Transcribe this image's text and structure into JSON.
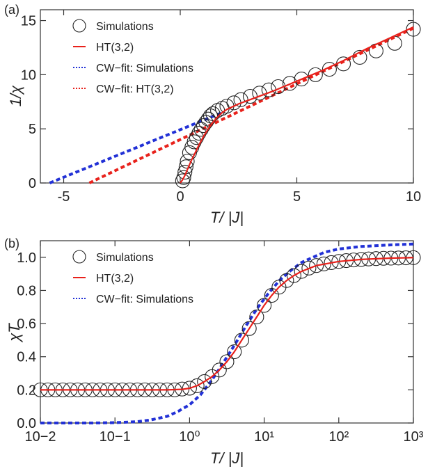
{
  "chart_data": [
    {
      "panel_label": "(a)",
      "type": "line",
      "xlabel": "T/ |J|",
      "ylabel": "1/χ",
      "xlim": [
        -6,
        10
      ],
      "ylim": [
        0,
        16
      ],
      "xticks": [
        -5,
        0,
        5,
        10
      ],
      "yticks": [
        0,
        5,
        10,
        15
      ],
      "xscale": "linear",
      "grid": false,
      "legend_position": "top-left",
      "colors": {
        "simulations": "#222222",
        "ht": "#e8211b",
        "cw_sim": "#2231d6",
        "cw_ht": "#e8211b"
      },
      "series": [
        {
          "name": "Simulations",
          "style": "open-circles",
          "x": [
            0.1,
            0.15,
            0.2,
            0.25,
            0.3,
            0.4,
            0.5,
            0.6,
            0.7,
            0.8,
            0.9,
            1.0,
            1.1,
            1.2,
            1.3,
            1.4,
            1.6,
            1.8,
            2.0,
            2.3,
            2.6,
            3.0,
            3.4,
            3.8,
            4.2,
            4.7,
            5.2,
            5.8,
            6.4,
            7.0,
            7.7,
            8.4,
            9.2,
            10.0
          ],
          "y": [
            0.2,
            0.5,
            1.0,
            1.5,
            2.0,
            2.8,
            3.3,
            3.8,
            4.2,
            4.6,
            4.95,
            5.3,
            5.6,
            5.9,
            6.2,
            6.4,
            6.7,
            6.9,
            7.1,
            7.4,
            7.7,
            8.0,
            8.3,
            8.6,
            8.9,
            9.2,
            9.6,
            10.0,
            10.5,
            11.0,
            11.6,
            12.2,
            12.9,
            14.2
          ]
        },
        {
          "name": "HT(3,2)",
          "style": "solid",
          "x": [
            0.0,
            0.1,
            0.2,
            0.3,
            0.4,
            0.5,
            0.6,
            0.8,
            1.0,
            1.2,
            1.4,
            1.6,
            1.8,
            2.0,
            2.5,
            3.0,
            4.0,
            5.0,
            6.0,
            7.0,
            8.0,
            9.0,
            10.0
          ],
          "y": [
            0.0,
            0.3,
            0.7,
            1.2,
            1.7,
            2.2,
            2.6,
            3.5,
            4.3,
            5.0,
            5.6,
            6.1,
            6.5,
            6.8,
            7.3,
            7.7,
            8.5,
            9.4,
            10.3,
            11.3,
            12.4,
            13.4,
            14.4
          ]
        },
        {
          "name": "CW−fit: Simulations",
          "style": "dotted",
          "x": [
            -5.6,
            1.8
          ],
          "y": [
            0.0,
            6.5
          ]
        },
        {
          "name": "CW−fit: HT(3,2)",
          "style": "dotted",
          "x": [
            -3.9,
            10.0
          ],
          "y": [
            0.0,
            14.3
          ]
        }
      ]
    },
    {
      "panel_label": "(b)",
      "type": "line",
      "xlabel": "T/ |J|",
      "ylabel": "χT",
      "xscale": "log",
      "xlim": [
        0.01,
        1000
      ],
      "ylim": [
        0.0,
        1.1
      ],
      "xticks": [
        "10−2",
        "10−1",
        "10⁰",
        "10¹",
        "10²",
        "10³"
      ],
      "yticks": [
        0.0,
        0.2,
        0.4,
        0.6,
        0.8,
        1.0
      ],
      "grid": false,
      "legend_position": "top-left",
      "colors": {
        "simulations": "#222222",
        "ht": "#e8211b",
        "cw_sim": "#2231d6"
      },
      "series": [
        {
          "name": "Simulations",
          "style": "open-circles",
          "x": [
            0.01,
            0.0126,
            0.0158,
            0.02,
            0.0251,
            0.0316,
            0.0398,
            0.05,
            0.0631,
            0.0794,
            0.1,
            0.126,
            0.158,
            0.2,
            0.251,
            0.316,
            0.398,
            0.5,
            0.631,
            0.794,
            1.0,
            1.26,
            1.58,
            2.0,
            2.51,
            3.16,
            3.98,
            5.01,
            6.31,
            7.94,
            10.0,
            12.6,
            15.8,
            20.0,
            25.1,
            31.6,
            39.8,
            50.1,
            63.1,
            79.4,
            100,
            126,
            158,
            200,
            251,
            316,
            398,
            501,
            631,
            794,
            1000
          ],
          "y": [
            0.2,
            0.2,
            0.2,
            0.2,
            0.2,
            0.2,
            0.2,
            0.2,
            0.2,
            0.2,
            0.2,
            0.2,
            0.2,
            0.2,
            0.2,
            0.2,
            0.2,
            0.2,
            0.2,
            0.205,
            0.21,
            0.225,
            0.25,
            0.28,
            0.32,
            0.37,
            0.43,
            0.5,
            0.57,
            0.64,
            0.71,
            0.77,
            0.82,
            0.86,
            0.89,
            0.915,
            0.935,
            0.95,
            0.96,
            0.968,
            0.975,
            0.98,
            0.984,
            0.987,
            0.99,
            0.992,
            0.994,
            0.995,
            0.996,
            0.997,
            0.998
          ]
        },
        {
          "name": "HT(3,2)",
          "style": "solid",
          "x": [
            0.01,
            0.1,
            0.5,
            0.8,
            1.0,
            1.26,
            1.58,
            2.0,
            2.51,
            3.16,
            3.98,
            5.01,
            6.31,
            7.94,
            10.0,
            12.6,
            15.8,
            20.0,
            25.1,
            31.6,
            50.1,
            100,
            200,
            500,
            1000
          ],
          "y": [
            0.2,
            0.2,
            0.2,
            0.203,
            0.21,
            0.225,
            0.25,
            0.28,
            0.32,
            0.37,
            0.43,
            0.5,
            0.57,
            0.64,
            0.71,
            0.77,
            0.82,
            0.86,
            0.89,
            0.915,
            0.95,
            0.975,
            0.987,
            0.995,
            0.998
          ]
        },
        {
          "name": "CW−fit: Simulations",
          "style": "dotted",
          "x": [
            0.01,
            0.05,
            0.1,
            0.2,
            0.3,
            0.5,
            0.7,
            1.0,
            1.4,
            2.0,
            2.8,
            4.0,
            5.6,
            8.0,
            11.3,
            16.0,
            22.6,
            32.0,
            45.3,
            64.0,
            100,
            200,
            500,
            1000
          ],
          "y": [
            0.0,
            0.0,
            0.002,
            0.008,
            0.018,
            0.04,
            0.07,
            0.11,
            0.17,
            0.26,
            0.36,
            0.47,
            0.58,
            0.69,
            0.78,
            0.86,
            0.92,
            0.97,
            1.0,
            1.03,
            1.05,
            1.065,
            1.075,
            1.08
          ]
        }
      ]
    }
  ]
}
